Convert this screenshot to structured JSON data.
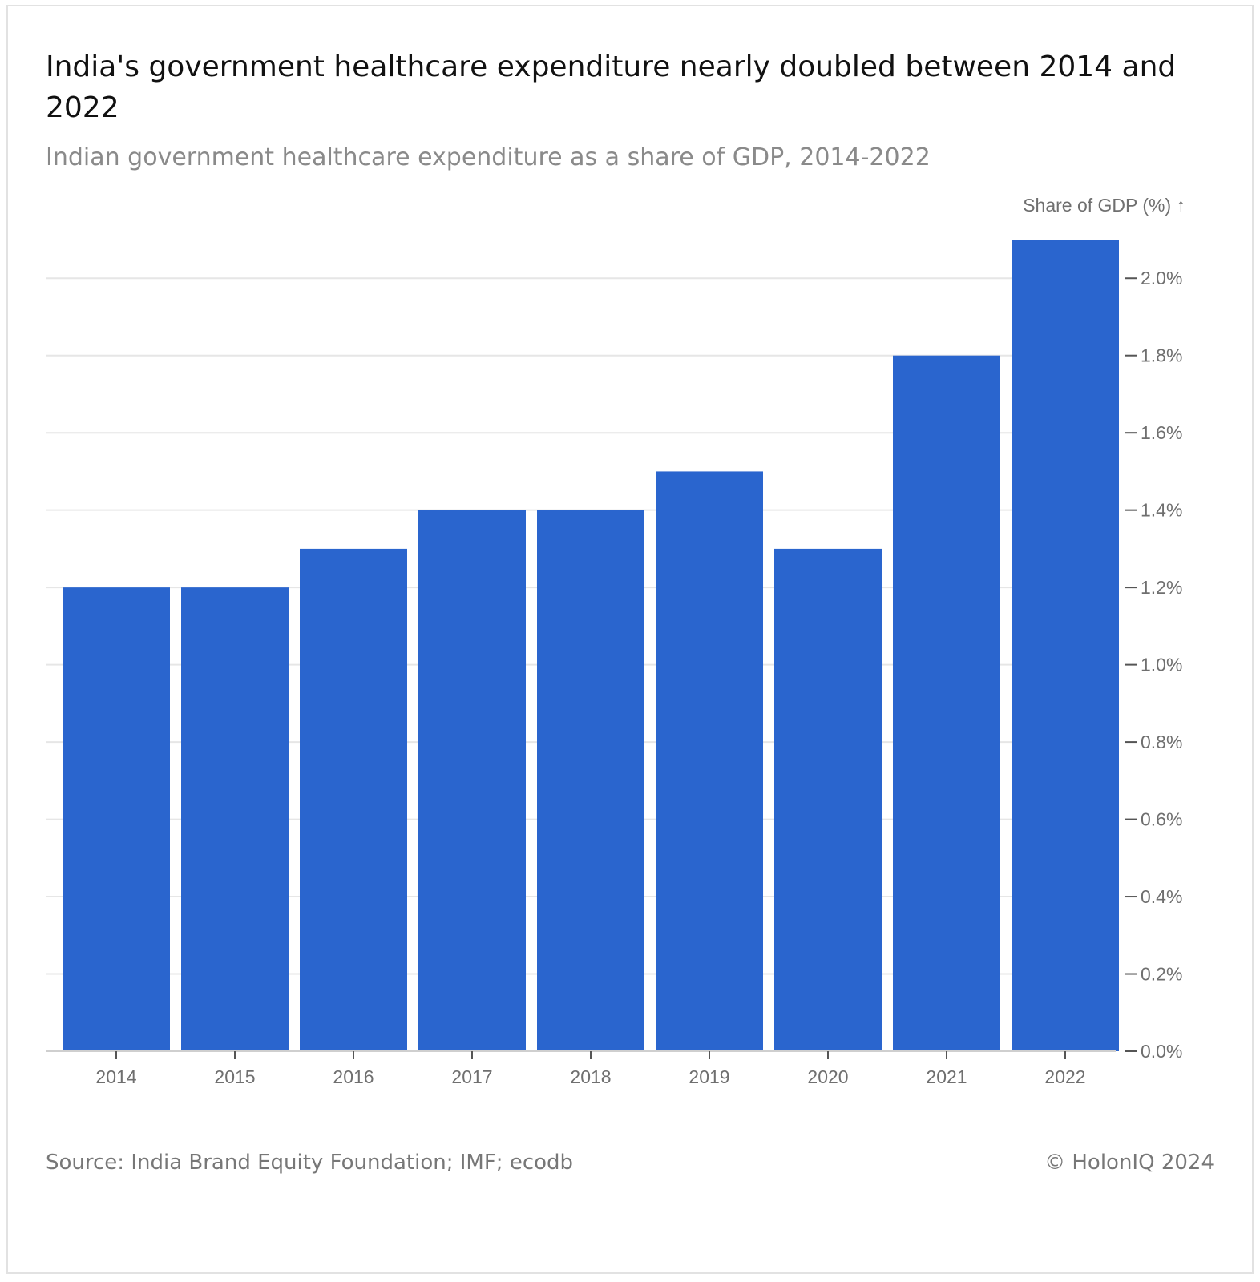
{
  "title": "India's government healthcare expenditure nearly doubled between 2014 and 2022",
  "subtitle": "Indian government healthcare expenditure as a share of GDP, 2014-2022",
  "footer": {
    "source": "Source: India Brand Equity Foundation; IMF; ecodb",
    "copyright": "© HolonIQ 2024"
  },
  "colors": {
    "bar": "#2a65ce",
    "grid": "#e6e6e6",
    "axis_text": "#6f6f6f",
    "tick": "#555555"
  },
  "chart_data": {
    "type": "bar",
    "ylabel": "Share of GDP (%) ↑",
    "categories": [
      "2014",
      "2015",
      "2016",
      "2017",
      "2018",
      "2019",
      "2020",
      "2021",
      "2022"
    ],
    "values": [
      1.2,
      1.2,
      1.3,
      1.4,
      1.4,
      1.5,
      1.3,
      1.8,
      2.1
    ],
    "ylim": [
      0,
      2.1
    ],
    "yticks": [
      0,
      0.2,
      0.4,
      0.6,
      0.8,
      1.0,
      1.2,
      1.4,
      1.6,
      1.8,
      2.0
    ],
    "ytick_labels": [
      "0.0%",
      "0.2%",
      "0.4%",
      "0.6%",
      "0.8%",
      "1.0%",
      "1.2%",
      "1.4%",
      "1.6%",
      "1.8%",
      "2.0%"
    ],
    "y_axis_position": "right",
    "grid": true,
    "legend": "none"
  }
}
